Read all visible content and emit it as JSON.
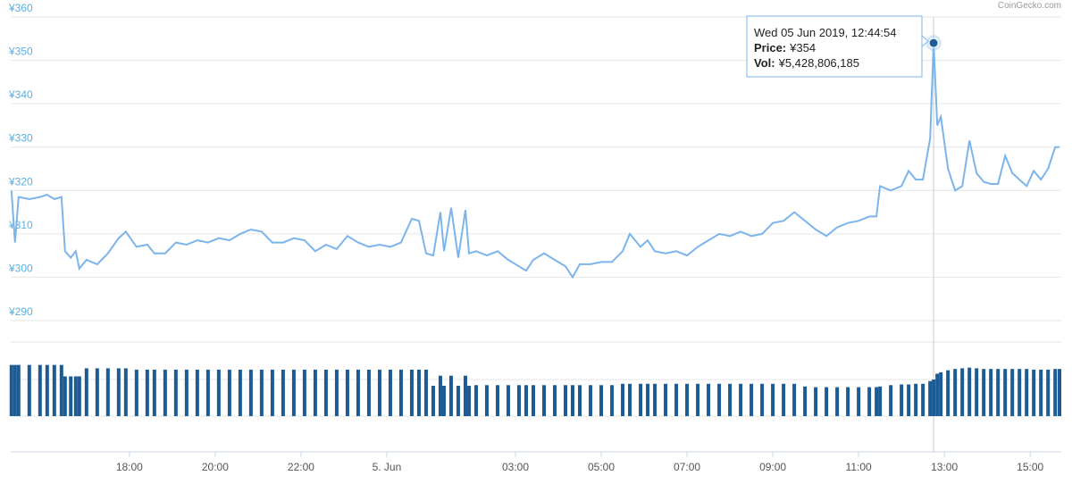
{
  "chart_data": {
    "type": "line",
    "credit": "CoinGecko.com",
    "x": [
      "2019-06-04T15:15",
      "2019-06-04T15:20",
      "2019-06-04T15:25",
      "2019-06-04T15:40",
      "2019-06-04T15:55",
      "2019-06-04T16:05",
      "2019-06-04T16:15",
      "2019-06-04T16:25",
      "2019-06-04T16:30",
      "2019-06-04T16:38",
      "2019-06-04T16:45",
      "2019-06-04T16:50",
      "2019-06-04T17:00",
      "2019-06-04T17:15",
      "2019-06-04T17:30",
      "2019-06-04T17:45",
      "2019-06-04T17:55",
      "2019-06-04T18:10",
      "2019-06-04T18:25",
      "2019-06-04T18:35",
      "2019-06-04T18:50",
      "2019-06-04T19:05",
      "2019-06-04T19:20",
      "2019-06-04T19:35",
      "2019-06-04T19:50",
      "2019-06-04T20:05",
      "2019-06-04T20:20",
      "2019-06-04T20:35",
      "2019-06-04T20:50",
      "2019-06-04T21:05",
      "2019-06-04T21:20",
      "2019-06-04T21:35",
      "2019-06-04T21:50",
      "2019-06-04T22:05",
      "2019-06-04T22:20",
      "2019-06-04T22:35",
      "2019-06-04T22:50",
      "2019-06-04T23:05",
      "2019-06-04T23:20",
      "2019-06-04T23:35",
      "2019-06-04T23:50",
      "2019-06-05T00:05",
      "2019-06-05T00:20",
      "2019-06-05T00:35",
      "2019-06-05T00:45",
      "2019-06-05T00:55",
      "2019-06-05T01:05",
      "2019-06-05T01:15",
      "2019-06-05T01:20",
      "2019-06-05T01:30",
      "2019-06-05T01:40",
      "2019-06-05T01:50",
      "2019-06-05T01:55",
      "2019-06-05T02:05",
      "2019-06-05T02:20",
      "2019-06-05T02:35",
      "2019-06-05T02:50",
      "2019-06-05T03:05",
      "2019-06-05T03:15",
      "2019-06-05T03:25",
      "2019-06-05T03:40",
      "2019-06-05T03:55",
      "2019-06-05T04:10",
      "2019-06-05T04:20",
      "2019-06-05T04:30",
      "2019-06-05T04:45",
      "2019-06-05T05:00",
      "2019-06-05T05:15",
      "2019-06-05T05:30",
      "2019-06-05T05:40",
      "2019-06-05T05:55",
      "2019-06-05T06:05",
      "2019-06-05T06:15",
      "2019-06-05T06:30",
      "2019-06-05T06:45",
      "2019-06-05T07:00",
      "2019-06-05T07:15",
      "2019-06-05T07:30",
      "2019-06-05T07:45",
      "2019-06-05T08:00",
      "2019-06-05T08:15",
      "2019-06-05T08:30",
      "2019-06-05T08:45",
      "2019-06-05T09:00",
      "2019-06-05T09:15",
      "2019-06-05T09:30",
      "2019-06-05T09:45",
      "2019-06-05T10:00",
      "2019-06-05T10:15",
      "2019-06-05T10:30",
      "2019-06-05T10:45",
      "2019-06-05T11:00",
      "2019-06-05T11:15",
      "2019-06-05T11:25",
      "2019-06-05T11:30",
      "2019-06-05T11:45",
      "2019-06-05T12:00",
      "2019-06-05T12:10",
      "2019-06-05T12:20",
      "2019-06-05T12:30",
      "2019-06-05T12:40",
      "2019-06-05T12:44:54",
      "2019-06-05T12:50",
      "2019-06-05T12:55",
      "2019-06-05T13:05",
      "2019-06-05T13:15",
      "2019-06-05T13:25",
      "2019-06-05T13:35",
      "2019-06-05T13:45",
      "2019-06-05T13:55",
      "2019-06-05T14:05",
      "2019-06-05T14:15",
      "2019-06-05T14:25",
      "2019-06-05T14:35",
      "2019-06-05T14:45",
      "2019-06-05T14:55",
      "2019-06-05T15:05",
      "2019-06-05T15:15",
      "2019-06-05T15:25",
      "2019-06-05T15:35",
      "2019-06-05T15:41"
    ],
    "series": [
      {
        "color": "#7cb5ec",
        "values": [
          320,
          308,
          318.5,
          318,
          318.5,
          319,
          318,
          318.5,
          306,
          304.5,
          306,
          302,
          304,
          303,
          305.5,
          309,
          310.5,
          307,
          307.5,
          305.5,
          305.5,
          308,
          307.5,
          308.5,
          308,
          309,
          308.5,
          310,
          311,
          310.5,
          308,
          308,
          309,
          308.5,
          306,
          307.5,
          306.5,
          309.5,
          308,
          307,
          307.5,
          307,
          308,
          313.5,
          313,
          305.5,
          305,
          315,
          306,
          316,
          304.5,
          315.5,
          305.5,
          306,
          305,
          306,
          304,
          302.5,
          301.5,
          304,
          305.5,
          304,
          302.5,
          300,
          303,
          303,
          303.5,
          303.5,
          306,
          310,
          307,
          308.5,
          306,
          305.5,
          306,
          305,
          307,
          308.5,
          310,
          309.5,
          310.5,
          309.5,
          310,
          312.5,
          313,
          315,
          313,
          311,
          309.5,
          311.5,
          312.5,
          313,
          314,
          314,
          321,
          320,
          321,
          324.5,
          322.5,
          322.5,
          332,
          354,
          335,
          337,
          325,
          320,
          321,
          331.5,
          324,
          322,
          321.5,
          321.5,
          328,
          324,
          322.5,
          321,
          324.5,
          322.5,
          325,
          330,
          330
        ]
      },
      {
        "type": "bar",
        "axis": "y2",
        "color": "#1c5b94",
        "values": [
          7600000000,
          7600000000,
          7600000000,
          7600000000,
          7600000000,
          7600000000,
          7600000000,
          7600000000,
          5900000000,
          5900000000,
          5900000000,
          5900000000,
          7100000000,
          7100000000,
          7100000000,
          7100000000,
          7100000000,
          6900000000,
          6900000000,
          6900000000,
          6900000000,
          6900000000,
          6900000000,
          6900000000,
          6900000000,
          6900000000,
          6900000000,
          6900000000,
          6900000000,
          6900000000,
          6900000000,
          6900000000,
          6900000000,
          6900000000,
          6900000000,
          6900000000,
          6900000000,
          6900000000,
          6900000000,
          6900000000,
          6900000000,
          6900000000,
          6900000000,
          6900000000,
          6900000000,
          6900000000,
          4500000000,
          6000000000,
          4500000000,
          6000000000,
          4500000000,
          6000000000,
          4500000000,
          4600000000,
          4600000000,
          4600000000,
          4600000000,
          4600000000,
          4600000000,
          4600000000,
          4600000000,
          4600000000,
          4600000000,
          4600000000,
          4600000000,
          4600000000,
          4600000000,
          4600000000,
          4800000000,
          4800000000,
          4800000000,
          4800000000,
          4800000000,
          4800000000,
          4800000000,
          4800000000,
          4800000000,
          4800000000,
          4800000000,
          4800000000,
          4800000000,
          4800000000,
          4800000000,
          4800000000,
          4800000000,
          4800000000,
          4400000000,
          4300000000,
          4300000000,
          4300000000,
          4300000000,
          4300000000,
          4300000000,
          4300000000,
          4400000000,
          4600000000,
          4700000000,
          4700000000,
          4800000000,
          4800000000,
          5200000000,
          5428806185,
          6300000000,
          6500000000,
          6800000000,
          7000000000,
          7100000000,
          7200000000,
          7100000000,
          7000000000,
          7000000000,
          7000000000,
          7000000000,
          7000000000,
          7000000000,
          7000000000,
          6900000000,
          6900000000,
          6900000000,
          7000000000,
          7000000000
        ]
      }
    ],
    "xlim": [
      "2019-06-04T15:14",
      "2019-06-05T15:41"
    ],
    "xticks": [
      {
        "value": "2019-06-04T18:00",
        "label": "18:00"
      },
      {
        "value": "2019-06-04T20:00",
        "label": "20:00"
      },
      {
        "value": "2019-06-04T22:00",
        "label": "22:00"
      },
      {
        "value": "2019-06-05T00:00",
        "label": "5. Jun"
      },
      {
        "value": "2019-06-05T03:00",
        "label": "03:00"
      },
      {
        "value": "2019-06-05T05:00",
        "label": "05:00"
      },
      {
        "value": "2019-06-05T07:00",
        "label": "07:00"
      },
      {
        "value": "2019-06-05T09:00",
        "label": "09:00"
      },
      {
        "value": "2019-06-05T11:00",
        "label": "11:00"
      },
      {
        "value": "2019-06-05T13:00",
        "label": "13:00"
      },
      {
        "value": "2019-06-05T15:00",
        "label": "15:00"
      }
    ],
    "ylim": [
      290,
      360
    ],
    "yticks": [
      {
        "value": 290,
        "label": "¥290"
      },
      {
        "value": 300,
        "label": "¥300"
      },
      {
        "value": 310,
        "label": "¥310"
      },
      {
        "value": 320,
        "label": "¥320"
      },
      {
        "value": 330,
        "label": "¥330"
      },
      {
        "value": 340,
        "label": "¥340"
      },
      {
        "value": 350,
        "label": "¥350"
      },
      {
        "value": 360,
        "label": "¥360"
      }
    ],
    "y2lim": [
      0,
      11000000000
    ],
    "grid": true,
    "tooltip": {
      "time": "Wed 05 Jun 2019, 12:44:54",
      "lines": [
        {
          "key": "Price:",
          "value": 354,
          "label": "¥354"
        },
        {
          "key": "Vol:",
          "value": 5428806185,
          "label": "¥5,428,806,185"
        }
      ]
    }
  }
}
